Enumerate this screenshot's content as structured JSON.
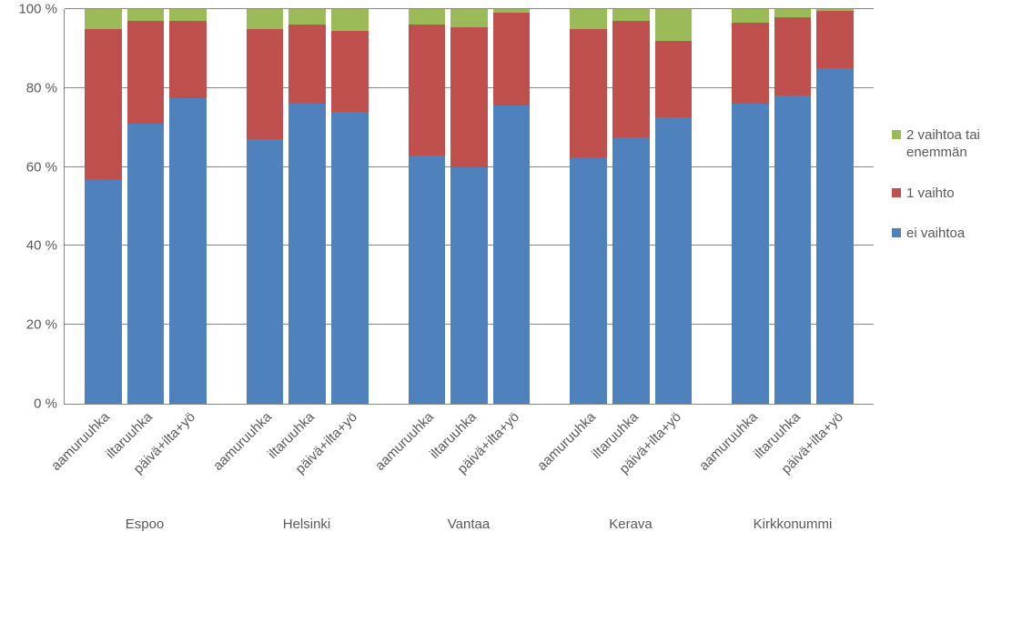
{
  "chart": {
    "type": "stacked-bar",
    "background_color": "#ffffff",
    "grid_color": "#868686",
    "axis_color": "#868686",
    "text_color": "#595959",
    "font_size": 15,
    "ylim": [
      0,
      100
    ],
    "ytick_step": 20,
    "yticks": [
      "0 %",
      "20 %",
      "40 %",
      "60 %",
      "80 %",
      "100 %"
    ],
    "series": [
      {
        "key": "ei_vaihtoa",
        "label": "ei vaihtoa",
        "color": "#4f81bd"
      },
      {
        "key": "yksi_vaihto",
        "label": "1 vaihto",
        "color": "#c0504d"
      },
      {
        "key": "kaksi_tai",
        "label": "2 vaihtoa tai enemmän",
        "color": "#9bbb59"
      }
    ],
    "legend_order": [
      "kaksi_tai",
      "yksi_vaihto",
      "ei_vaihtoa"
    ],
    "groups": [
      {
        "label": "Espoo",
        "bars": [
          {
            "label": "aamuruuhka",
            "ei_vaihtoa": 57,
            "yksi_vaihto": 38,
            "kaksi_tai": 5
          },
          {
            "label": "iltaruuhka",
            "ei_vaihtoa": 71,
            "yksi_vaihto": 26,
            "kaksi_tai": 3
          },
          {
            "label": "päivä+ilta+yö",
            "ei_vaihtoa": 77.5,
            "yksi_vaihto": 19.5,
            "kaksi_tai": 3
          }
        ]
      },
      {
        "label": "Helsinki",
        "bars": [
          {
            "label": "aamuruuhka",
            "ei_vaihtoa": 67,
            "yksi_vaihto": 28,
            "kaksi_tai": 5
          },
          {
            "label": "iltaruuhka",
            "ei_vaihtoa": 76,
            "yksi_vaihto": 20,
            "kaksi_tai": 4
          },
          {
            "label": "päivä+ilta+yö",
            "ei_vaihtoa": 74,
            "yksi_vaihto": 20.5,
            "kaksi_tai": 5.5
          }
        ]
      },
      {
        "label": "Vantaa",
        "bars": [
          {
            "label": "aamuruuhka",
            "ei_vaihtoa": 63,
            "yksi_vaihto": 33,
            "kaksi_tai": 4
          },
          {
            "label": "iltaruuhka",
            "ei_vaihtoa": 60,
            "yksi_vaihto": 35.5,
            "kaksi_tai": 4.5
          },
          {
            "label": "päivä+ilta+yö",
            "ei_vaihtoa": 75.5,
            "yksi_vaihto": 23.5,
            "kaksi_tai": 1
          }
        ]
      },
      {
        "label": "Kerava",
        "bars": [
          {
            "label": "aamuruuhka",
            "ei_vaihtoa": 62.5,
            "yksi_vaihto": 32.5,
            "kaksi_tai": 5
          },
          {
            "label": "iltaruuhka",
            "ei_vaihtoa": 67.5,
            "yksi_vaihto": 29.5,
            "kaksi_tai": 3
          },
          {
            "label": "päivä+ilta+yö",
            "ei_vaihtoa": 72.5,
            "yksi_vaihto": 19.5,
            "kaksi_tai": 8
          }
        ]
      },
      {
        "label": "Kirkkonummi",
        "bars": [
          {
            "label": "aamuruuhka",
            "ei_vaihtoa": 76,
            "yksi_vaihto": 20.5,
            "kaksi_tai": 3.5
          },
          {
            "label": "iltaruuhka",
            "ei_vaihtoa": 78,
            "yksi_vaihto": 20,
            "kaksi_tai": 2
          },
          {
            "label": "päivä+ilta+yö",
            "ei_vaihtoa": 85,
            "yksi_vaihto": 14.5,
            "kaksi_tai": 0.5
          }
        ]
      }
    ]
  }
}
